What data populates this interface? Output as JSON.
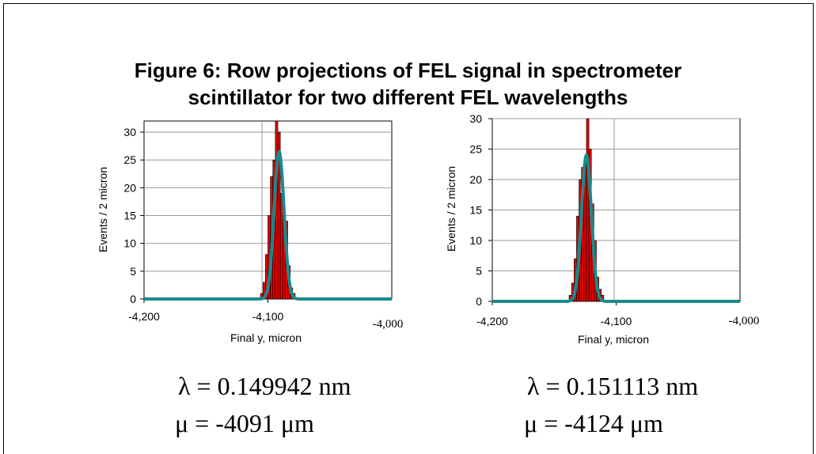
{
  "figure": {
    "title_line1": "Figure 6: Row projections of FEL signal in spectrometer",
    "title_line2": "scintillator for two different FEL wavelengths"
  },
  "colors": {
    "bars": "#e00000",
    "bar_outline": "#000000",
    "fit": "#1a8a8a",
    "grid": "#999999"
  },
  "captions": {
    "left_lambda": "λ = 0.149942 nm",
    "left_mu": "μ = -4091 μm",
    "right_lambda": "λ = 0.151113 nm",
    "right_mu": "μ = -4124 μm"
  },
  "chart_data": [
    {
      "type": "bar",
      "xlabel": "Final y, micron",
      "ylabel": "Events / 2 micron",
      "xlim": [
        -4200,
        -4000
      ],
      "ylim": [
        0,
        32
      ],
      "xticks": [
        "-4,200",
        "-4,100",
        "-4,000"
      ],
      "yticks": [
        "0",
        "5",
        "10",
        "15",
        "20",
        "25",
        "30"
      ],
      "bin_width": 2,
      "bins": [
        {
          "x": -4105,
          "y": 1
        },
        {
          "x": -4103,
          "y": 3
        },
        {
          "x": -4101,
          "y": 8
        },
        {
          "x": -4099,
          "y": 15
        },
        {
          "x": -4097,
          "y": 22
        },
        {
          "x": -4095,
          "y": 25
        },
        {
          "x": -4093,
          "y": 32
        },
        {
          "x": -4091,
          "y": 30
        },
        {
          "x": -4089,
          "y": 19
        },
        {
          "x": -4087,
          "y": 15
        },
        {
          "x": -4085,
          "y": 14
        },
        {
          "x": -4083,
          "y": 6
        },
        {
          "x": -4081,
          "y": 2
        },
        {
          "x": -4079,
          "y": 1
        }
      ],
      "fit": {
        "type": "gaussian",
        "mean": -4091,
        "sigma": 4,
        "peak": 26.5
      }
    },
    {
      "type": "bar",
      "xlabel": "Final y, micron",
      "ylabel": "Events / 2 micron",
      "xlim": [
        -4200,
        -4000
      ],
      "ylim": [
        0,
        30
      ],
      "xticks": [
        "-4,200",
        "-4,100",
        "-4,000"
      ],
      "yticks": [
        "0",
        "5",
        "10",
        "15",
        "20",
        "25",
        "30"
      ],
      "bin_width": 2,
      "bins": [
        {
          "x": -4137,
          "y": 1
        },
        {
          "x": -4135,
          "y": 3
        },
        {
          "x": -4133,
          "y": 7
        },
        {
          "x": -4131,
          "y": 14
        },
        {
          "x": -4129,
          "y": 20
        },
        {
          "x": -4127,
          "y": 22
        },
        {
          "x": -4125,
          "y": 23
        },
        {
          "x": -4123,
          "y": 30
        },
        {
          "x": -4121,
          "y": 25
        },
        {
          "x": -4119,
          "y": 16
        },
        {
          "x": -4117,
          "y": 10
        },
        {
          "x": -4115,
          "y": 4
        },
        {
          "x": -4113,
          "y": 2
        },
        {
          "x": -4111,
          "y": 1
        }
      ],
      "fit": {
        "type": "gaussian",
        "mean": -4124,
        "sigma": 4,
        "peak": 24
      }
    }
  ]
}
